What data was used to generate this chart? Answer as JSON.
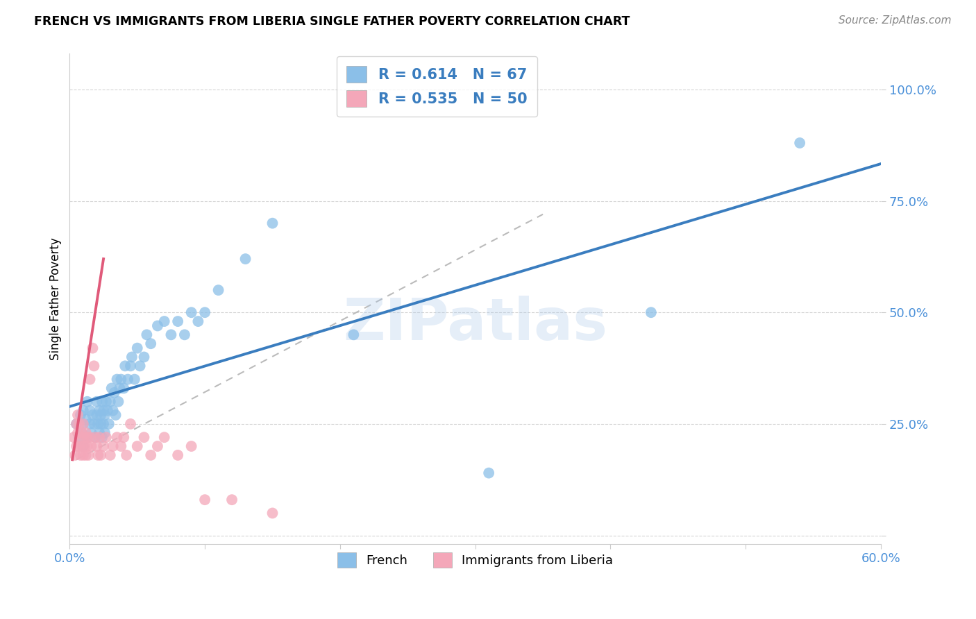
{
  "title": "FRENCH VS IMMIGRANTS FROM LIBERIA SINGLE FATHER POVERTY CORRELATION CHART",
  "source": "Source: ZipAtlas.com",
  "ylabel": "Single Father Poverty",
  "xlim": [
    0.0,
    0.6
  ],
  "ylim": [
    -0.02,
    1.08
  ],
  "french_color": "#8bbfe8",
  "liberia_color": "#f4a7b9",
  "french_line_color": "#3a7dbf",
  "liberia_line_color": "#e05a7a",
  "liberia_dash_color": "#cccccc",
  "french_R": 0.614,
  "french_N": 67,
  "liberia_R": 0.535,
  "liberia_N": 50,
  "french_scatter_x": [
    0.005,
    0.007,
    0.008,
    0.009,
    0.01,
    0.01,
    0.01,
    0.012,
    0.013,
    0.013,
    0.015,
    0.015,
    0.016,
    0.017,
    0.018,
    0.019,
    0.02,
    0.02,
    0.021,
    0.022,
    0.022,
    0.023,
    0.023,
    0.024,
    0.024,
    0.025,
    0.025,
    0.026,
    0.026,
    0.027,
    0.028,
    0.029,
    0.03,
    0.031,
    0.032,
    0.033,
    0.034,
    0.035,
    0.036,
    0.037,
    0.038,
    0.04,
    0.041,
    0.043,
    0.045,
    0.046,
    0.048,
    0.05,
    0.052,
    0.055,
    0.057,
    0.06,
    0.065,
    0.07,
    0.075,
    0.08,
    0.085,
    0.09,
    0.095,
    0.1,
    0.11,
    0.13,
    0.15,
    0.21,
    0.31,
    0.43,
    0.54
  ],
  "french_scatter_y": [
    0.25,
    0.22,
    0.27,
    0.23,
    0.25,
    0.28,
    0.2,
    0.26,
    0.22,
    0.3,
    0.25,
    0.28,
    0.23,
    0.27,
    0.25,
    0.22,
    0.27,
    0.3,
    0.25,
    0.28,
    0.23,
    0.25,
    0.27,
    0.22,
    0.3,
    0.25,
    0.28,
    0.27,
    0.23,
    0.3,
    0.28,
    0.25,
    0.3,
    0.33,
    0.28,
    0.32,
    0.27,
    0.35,
    0.3,
    0.33,
    0.35,
    0.33,
    0.38,
    0.35,
    0.38,
    0.4,
    0.35,
    0.42,
    0.38,
    0.4,
    0.45,
    0.43,
    0.47,
    0.48,
    0.45,
    0.48,
    0.45,
    0.5,
    0.48,
    0.5,
    0.55,
    0.62,
    0.7,
    0.45,
    0.14,
    0.5,
    0.88
  ],
  "liberia_scatter_x": [
    0.003,
    0.004,
    0.005,
    0.005,
    0.006,
    0.006,
    0.007,
    0.007,
    0.008,
    0.008,
    0.009,
    0.009,
    0.01,
    0.01,
    0.011,
    0.011,
    0.012,
    0.012,
    0.013,
    0.013,
    0.014,
    0.015,
    0.015,
    0.016,
    0.017,
    0.018,
    0.019,
    0.02,
    0.021,
    0.022,
    0.023,
    0.025,
    0.027,
    0.03,
    0.032,
    0.035,
    0.038,
    0.04,
    0.042,
    0.045,
    0.05,
    0.055,
    0.06,
    0.065,
    0.07,
    0.08,
    0.09,
    0.1,
    0.12,
    0.15
  ],
  "liberia_scatter_y": [
    0.22,
    0.18,
    0.25,
    0.2,
    0.23,
    0.27,
    0.2,
    0.25,
    0.22,
    0.18,
    0.2,
    0.23,
    0.18,
    0.25,
    0.22,
    0.2,
    0.18,
    0.23,
    0.2,
    0.22,
    0.18,
    0.35,
    0.22,
    0.2,
    0.42,
    0.38,
    0.22,
    0.2,
    0.18,
    0.22,
    0.18,
    0.2,
    0.22,
    0.18,
    0.2,
    0.22,
    0.2,
    0.22,
    0.18,
    0.25,
    0.2,
    0.22,
    0.18,
    0.2,
    0.22,
    0.18,
    0.2,
    0.08,
    0.08,
    0.05
  ],
  "ytick_positions": [
    0.0,
    0.25,
    0.5,
    0.75,
    1.0
  ],
  "ytick_labels": [
    "",
    "25.0%",
    "50.0%",
    "75.0%",
    "100.0%"
  ],
  "xtick_positions": [
    0.0,
    0.1,
    0.2,
    0.3,
    0.4,
    0.5,
    0.6
  ],
  "xtick_labels": [
    "0.0%",
    "",
    "",
    "",
    "",
    "",
    "60.0%"
  ],
  "watermark": "ZIPatlas",
  "background_color": "#ffffff",
  "grid_color": "#d0d0d0",
  "tick_color": "#4a90d9"
}
